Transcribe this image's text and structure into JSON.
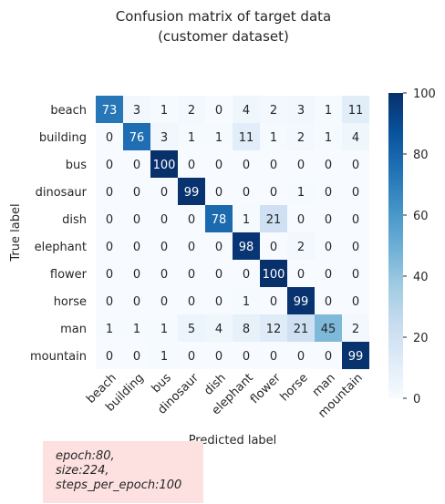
{
  "chart_data": {
    "type": "heatmap",
    "title": "Confusion matrix of target data\n(customer dataset)",
    "xlabel": "Predicted label",
    "ylabel": "True label",
    "labels": [
      "beach",
      "building",
      "bus",
      "dinosaur",
      "dish",
      "elephant",
      "flower",
      "horse",
      "man",
      "mountain"
    ],
    "matrix": [
      [
        73,
        3,
        1,
        2,
        0,
        4,
        2,
        3,
        1,
        11
      ],
      [
        0,
        76,
        3,
        1,
        1,
        11,
        1,
        2,
        1,
        4
      ],
      [
        0,
        0,
        100,
        0,
        0,
        0,
        0,
        0,
        0,
        0
      ],
      [
        0,
        0,
        0,
        99,
        0,
        0,
        0,
        1,
        0,
        0
      ],
      [
        0,
        0,
        0,
        0,
        78,
        1,
        21,
        0,
        0,
        0
      ],
      [
        0,
        0,
        0,
        0,
        0,
        98,
        0,
        2,
        0,
        0
      ],
      [
        0,
        0,
        0,
        0,
        0,
        0,
        100,
        0,
        0,
        0
      ],
      [
        0,
        0,
        0,
        0,
        0,
        1,
        0,
        99,
        0,
        0
      ],
      [
        1,
        1,
        1,
        5,
        4,
        8,
        12,
        21,
        45,
        2
      ],
      [
        0,
        0,
        1,
        0,
        0,
        0,
        0,
        0,
        0,
        99
      ]
    ],
    "colorbar": {
      "min": 0,
      "max": 100,
      "ticks": [
        0,
        20,
        40,
        60,
        80,
        100
      ],
      "colormap": "Blues"
    }
  },
  "note": {
    "lines": [
      "epoch:80,",
      "size:224,",
      "steps_per_epoch:100"
    ],
    "background": "#fde0e0"
  }
}
